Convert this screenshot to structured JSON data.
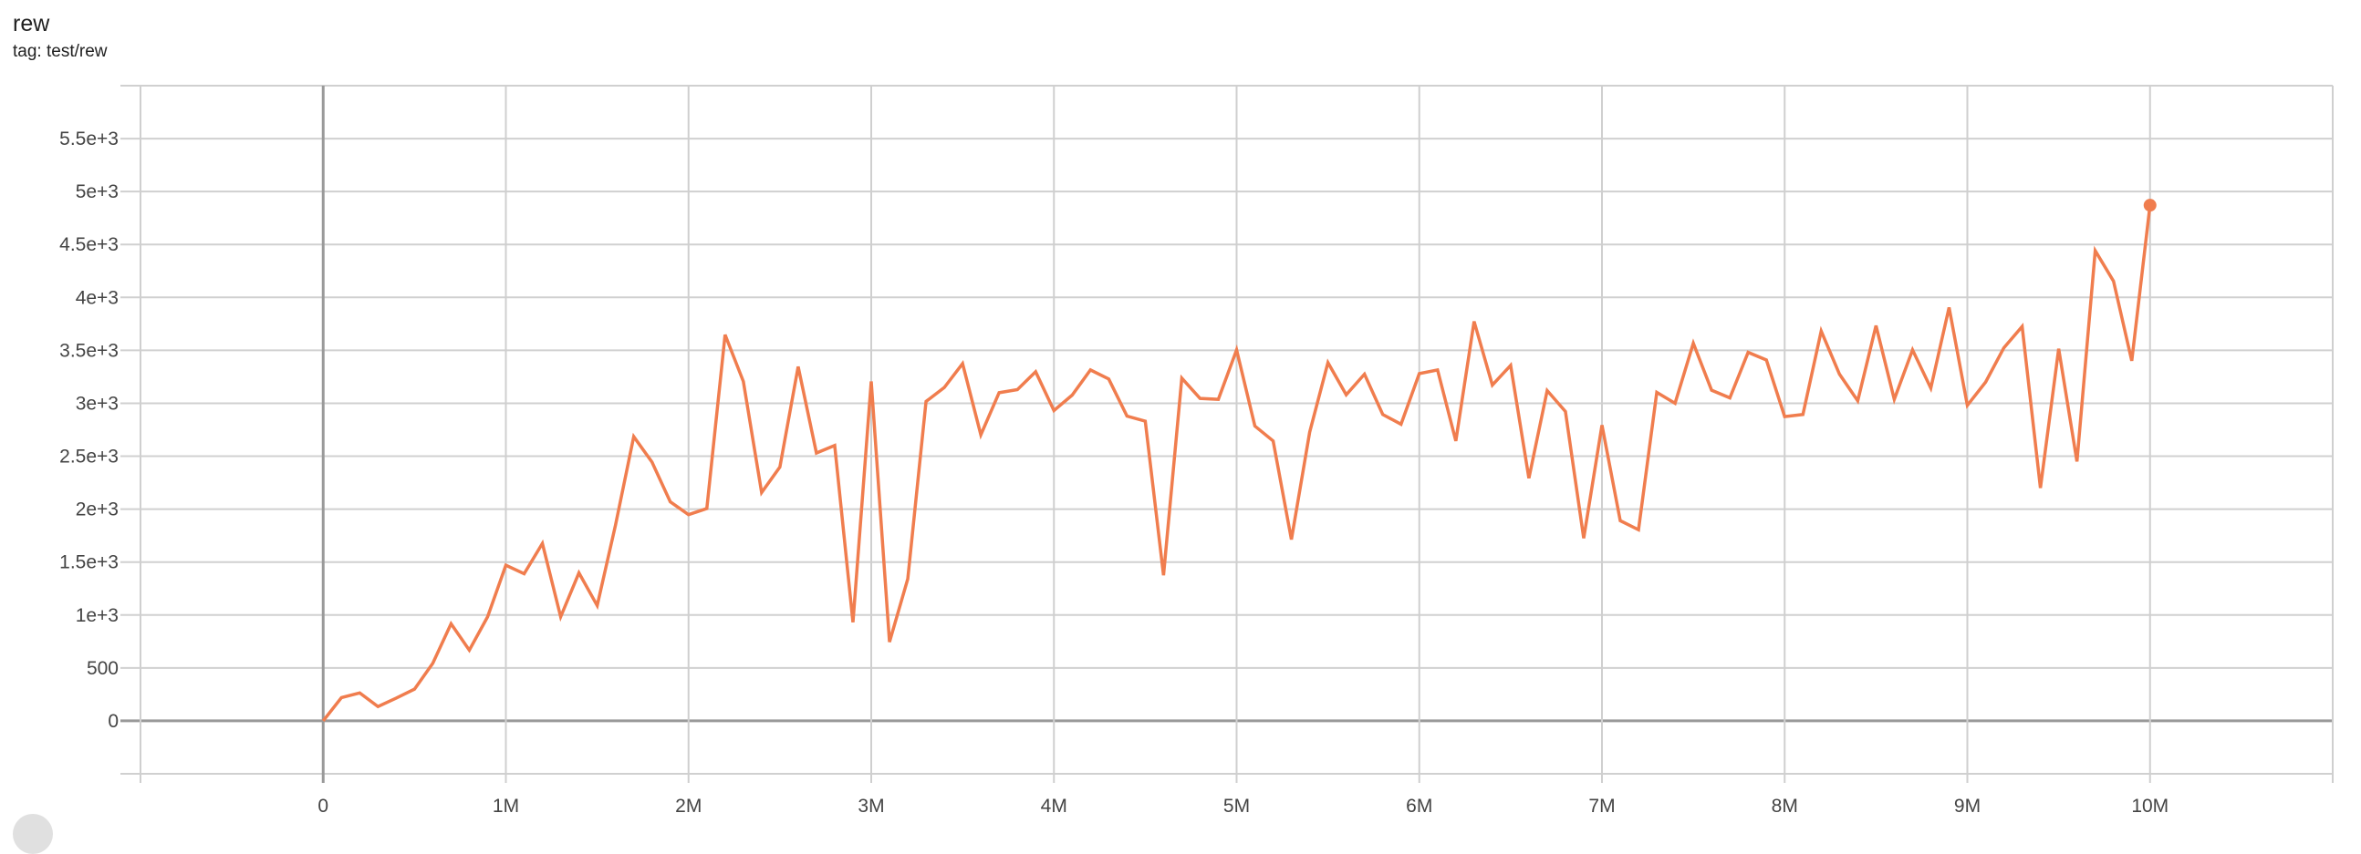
{
  "card": {
    "title": "rew",
    "tag": "tag: test/rew"
  },
  "chart_data": {
    "type": "line",
    "title": "rew",
    "subtitle": "tag: test/rew",
    "xlabel": "",
    "ylabel": "",
    "xlim": [
      -1000000,
      11000000
    ],
    "ylim": [
      -500,
      6000
    ],
    "grid": true,
    "x_ticks": [
      0,
      1000000,
      2000000,
      3000000,
      4000000,
      5000000,
      6000000,
      7000000,
      8000000,
      9000000,
      10000000
    ],
    "x_tick_labels": [
      "0",
      "1M",
      "2M",
      "3M",
      "4M",
      "5M",
      "6M",
      "7M",
      "8M",
      "9M",
      "10M"
    ],
    "y_ticks": [
      0,
      500,
      1000,
      1500,
      2000,
      2500,
      3000,
      3500,
      4000,
      4500,
      5000,
      5500
    ],
    "y_tick_labels": [
      "0",
      "500",
      "1e+3",
      "1.5e+3",
      "2e+3",
      "2.5e+3",
      "3e+3",
      "3.5e+3",
      "4e+3",
      "4.5e+3",
      "5e+3",
      "5.5e+3"
    ],
    "color": "#f07d4e",
    "x_step": 100000,
    "x_start": 0,
    "values": [
      0,
      220,
      264,
      135,
      215,
      300,
      544,
      917,
      668,
      983,
      1470,
      1390,
      1676,
      983,
      1398,
      1089,
      1848,
      2685,
      2444,
      2069,
      1948,
      2006,
      3647,
      3206,
      2157,
      2398,
      3346,
      2530,
      2601,
      931,
      3206,
      745,
      1341,
      3017,
      3149,
      3375,
      2702,
      3100,
      3129,
      3298,
      2931,
      3077,
      3315,
      3229,
      2879,
      2831,
      1375,
      3237,
      3046,
      3037,
      3504,
      2785,
      2644,
      1713,
      2727,
      3384,
      3080,
      3275,
      2894,
      2802,
      3280,
      3315,
      2644,
      3773,
      3172,
      3358,
      2292,
      3120,
      2922,
      1725,
      2793,
      1891,
      1805,
      3103,
      3000,
      3567,
      3123,
      3051,
      3481,
      3409,
      2874,
      2894,
      3682,
      3275,
      3023,
      3733,
      3037,
      3504,
      3143,
      3905,
      2980,
      3200,
      3524,
      3725,
      2200,
      3515,
      2450,
      4441,
      4154,
      3401,
      4871
    ]
  }
}
